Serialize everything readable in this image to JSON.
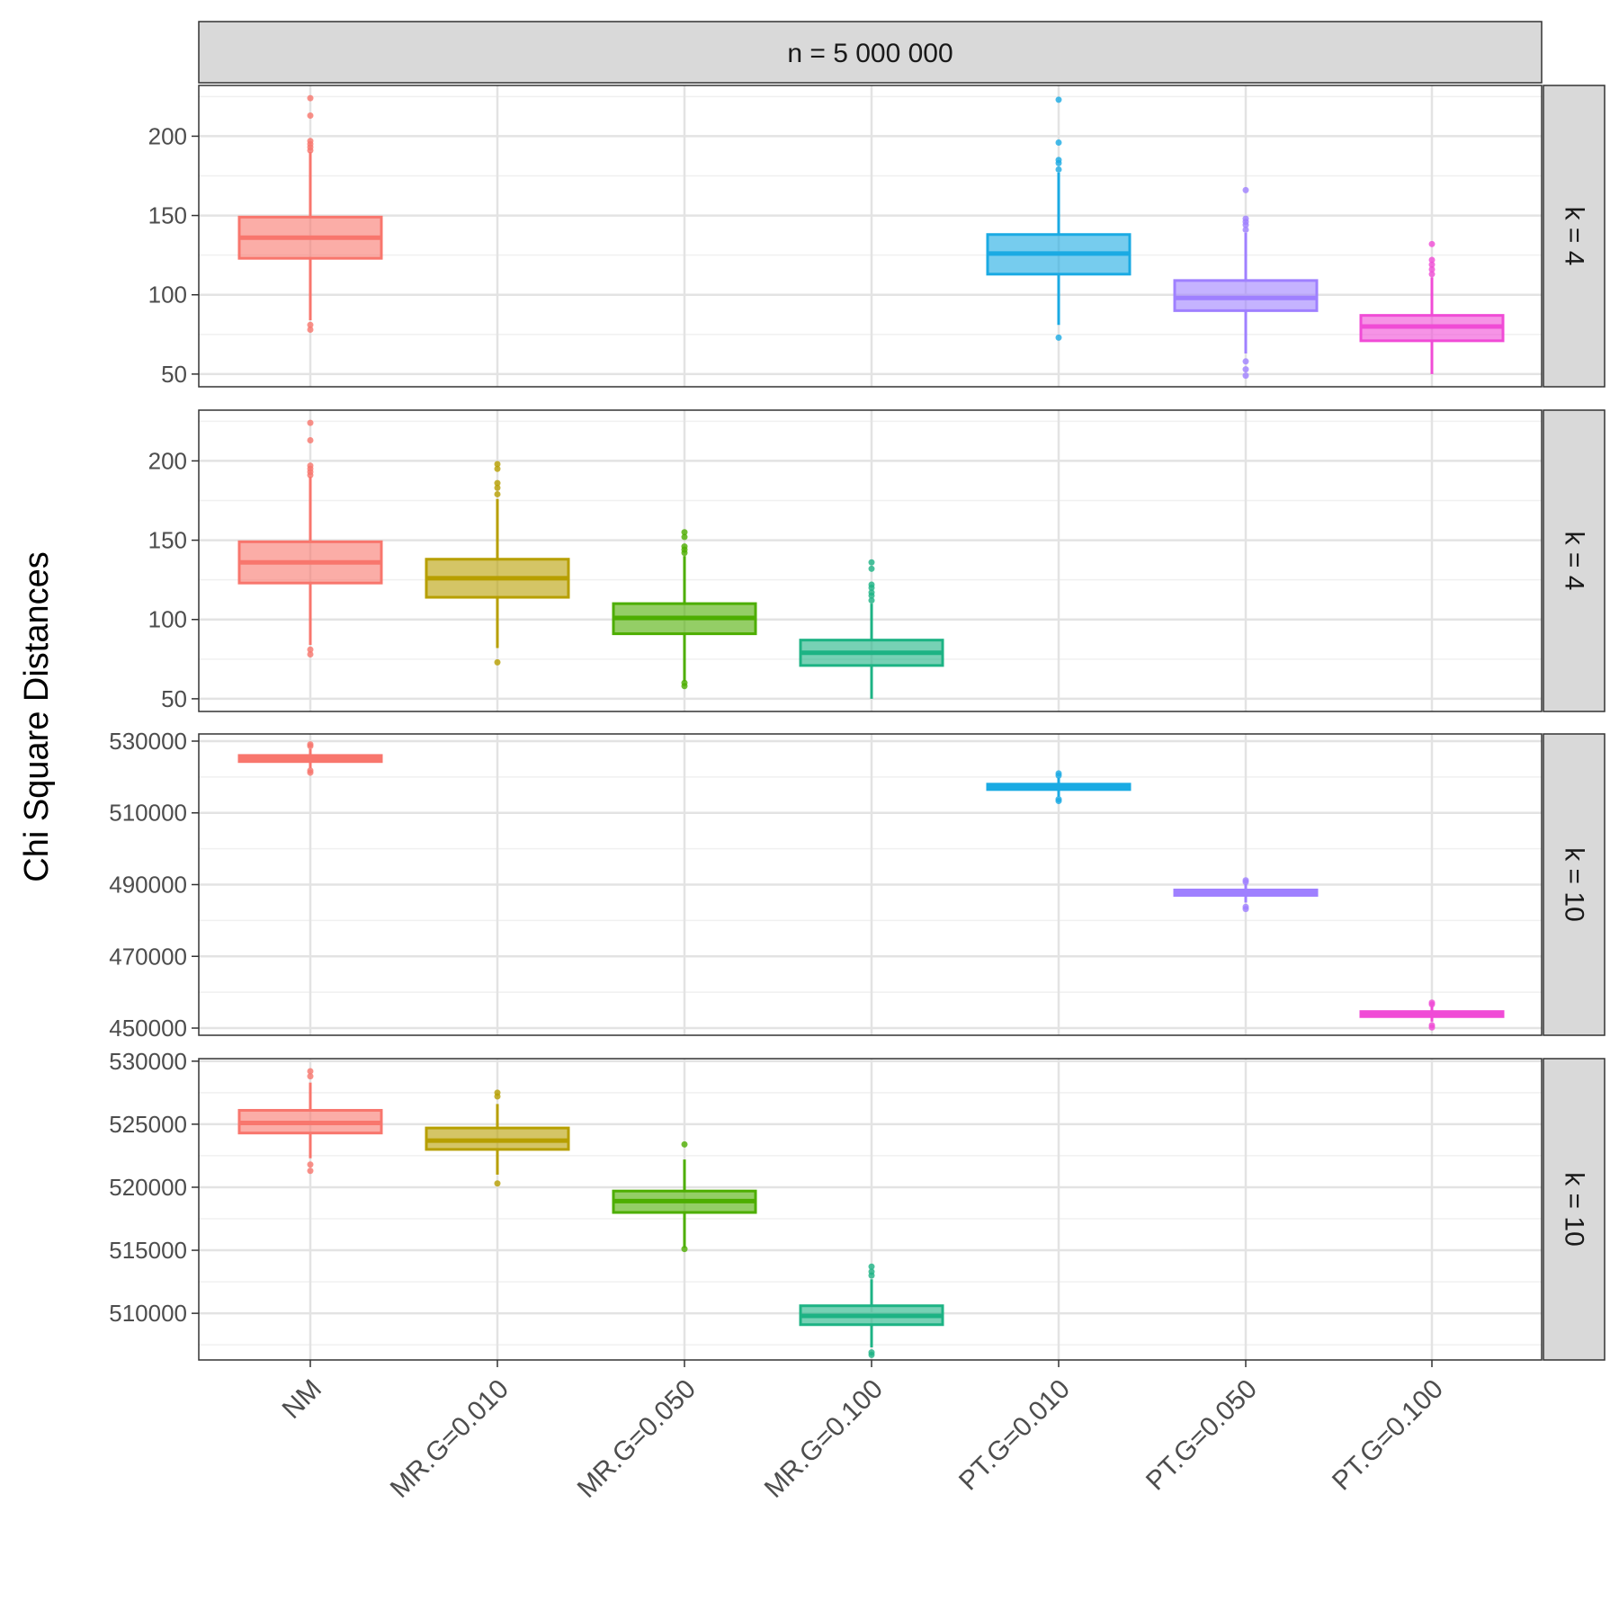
{
  "chart_data": {
    "type": "boxplot",
    "column_strip": "n = 5 000 000",
    "ylabel": "Chi Square Distances",
    "xlabel": "",
    "categories": [
      "NM",
      "MR.G=0.010",
      "MR.G=0.050",
      "MR.G=0.100",
      "PT.G=0.010",
      "PT.G=0.050",
      "PT.G=0.100"
    ],
    "colors": {
      "NM": "#F8766D",
      "MR.G=0.010": "#B79F00",
      "MR.G=0.050": "#4DAE00",
      "MR.G=0.100": "#1DB384",
      "PT.G=0.010": "#1AAAE3",
      "PT.G=0.050": "#9F80FF",
      "PT.G=0.100": "#F04BD6"
    },
    "panels": [
      {
        "row_strip": "k = 4",
        "ylim": [
          42,
          232
        ],
        "yticks": [
          50,
          100,
          150,
          200
        ],
        "ytick_labels": [
          "50",
          "100",
          "150",
          "200"
        ],
        "minor_ticks": [
          75,
          125,
          175,
          225
        ],
        "boxes": [
          {
            "category": "NM",
            "q1": 123,
            "median": 136,
            "q3": 149,
            "whisker_low": 84,
            "whisker_high": 190,
            "outliers": [
              78,
              81,
              191,
              193,
              195,
              197,
              213,
              224
            ]
          },
          {
            "category": "PT.G=0.010",
            "q1": 113,
            "median": 126,
            "q3": 138,
            "whisker_low": 81,
            "whisker_high": 177,
            "outliers": [
              73,
              179,
              183,
              185,
              196,
              223
            ]
          },
          {
            "category": "PT.G=0.050",
            "q1": 90,
            "median": 98,
            "q3": 109,
            "whisker_low": 63,
            "whisker_high": 139,
            "outliers": [
              49,
              53,
              58,
              141,
              144,
              146,
              148,
              166
            ]
          },
          {
            "category": "PT.G=0.100",
            "q1": 71,
            "median": 80,
            "q3": 87,
            "whisker_low": 50,
            "whisker_high": 111,
            "outliers": [
              113,
              116,
              119,
              122,
              132
            ]
          }
        ]
      },
      {
        "row_strip": "k = 4",
        "ylim": [
          42,
          232
        ],
        "yticks": [
          50,
          100,
          150,
          200
        ],
        "ytick_labels": [
          "50",
          "100",
          "150",
          "200"
        ],
        "minor_ticks": [
          75,
          125,
          175,
          225
        ],
        "boxes": [
          {
            "category": "NM",
            "q1": 123,
            "median": 136,
            "q3": 149,
            "whisker_low": 84,
            "whisker_high": 190,
            "outliers": [
              78,
              81,
              191,
              193,
              195,
              197,
              213,
              224
            ]
          },
          {
            "category": "MR.G=0.010",
            "q1": 114,
            "median": 126,
            "q3": 138,
            "whisker_low": 82,
            "whisker_high": 176,
            "outliers": [
              73,
              179,
              183,
              186,
              195,
              198
            ]
          },
          {
            "category": "MR.G=0.050",
            "q1": 91,
            "median": 101,
            "q3": 110,
            "whisker_low": 61,
            "whisker_high": 140,
            "outliers": [
              58,
              60,
              142,
              144,
              146,
              152,
              155
            ]
          },
          {
            "category": "MR.G=0.100",
            "q1": 71,
            "median": 79,
            "q3": 87,
            "whisker_low": 50,
            "whisker_high": 110,
            "outliers": [
              112,
              115,
              117,
              120,
              122,
              132,
              136
            ]
          }
        ]
      },
      {
        "row_strip": "k = 10",
        "ylim": [
          448000,
          532000
        ],
        "yticks": [
          450000,
          470000,
          490000,
          510000,
          530000
        ],
        "ytick_labels": [
          "450000",
          "470000",
          "490000",
          "510000",
          "530000"
        ],
        "minor_ticks": [
          460000,
          480000,
          500000,
          520000
        ],
        "boxes": [
          {
            "category": "NM",
            "q1": 524300,
            "median": 525100,
            "q3": 526000,
            "whisker_low": 522500,
            "whisker_high": 527800,
            "outliers": [
              521200,
              521800,
              528600,
              529100
            ]
          },
          {
            "category": "PT.G=0.010",
            "q1": 516500,
            "median": 517200,
            "q3": 518000,
            "whisker_low": 514500,
            "whisker_high": 519800,
            "outliers": [
              513300,
              513800,
              520400,
              521000
            ]
          },
          {
            "category": "PT.G=0.050",
            "q1": 487000,
            "median": 487700,
            "q3": 488500,
            "whisker_low": 485000,
            "whisker_high": 490200,
            "outliers": [
              483200,
              483800,
              490700,
              491200
            ]
          },
          {
            "category": "PT.G=0.100",
            "q1": 453200,
            "median": 453800,
            "q3": 454600,
            "whisker_low": 451800,
            "whisker_high": 456200,
            "outliers": [
              450200,
              450800,
              456600,
              457100
            ]
          }
        ]
      },
      {
        "row_strip": "k = 10",
        "ylim": [
          506300,
          530200
        ],
        "yticks": [
          510000,
          515000,
          520000,
          525000,
          530000
        ],
        "ytick_labels": [
          "510000",
          "515000",
          "520000",
          "525000",
          "530000"
        ],
        "minor_ticks": [
          507500,
          512500,
          517500,
          522500,
          527500
        ],
        "boxes": [
          {
            "category": "NM",
            "q1": 524300,
            "median": 525100,
            "q3": 526100,
            "whisker_low": 522300,
            "whisker_high": 528300,
            "outliers": [
              521300,
              521800,
              528800,
              529200
            ]
          },
          {
            "category": "MR.G=0.010",
            "q1": 523000,
            "median": 523700,
            "q3": 524700,
            "whisker_low": 521000,
            "whisker_high": 526600,
            "outliers": [
              520300,
              527200,
              527500
            ]
          },
          {
            "category": "MR.G=0.050",
            "q1": 518000,
            "median": 518900,
            "q3": 519700,
            "whisker_low": 515200,
            "whisker_high": 522200,
            "outliers": [
              515100,
              523400
            ]
          },
          {
            "category": "MR.G=0.100",
            "q1": 509100,
            "median": 509800,
            "q3": 510600,
            "whisker_low": 507300,
            "whisker_high": 512700,
            "outliers": [
              506700,
              506900,
              513000,
              513300,
              513700
            ]
          }
        ]
      }
    ]
  }
}
